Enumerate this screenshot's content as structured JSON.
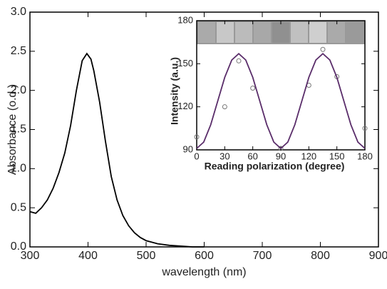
{
  "chart_data": [
    {
      "type": "line",
      "x_label": "wavelength (nm)",
      "y_label": "Absorbance (o.d.)",
      "xlim": [
        300,
        900
      ],
      "ylim": [
        0,
        3
      ],
      "xticks": [
        300,
        400,
        500,
        600,
        700,
        800,
        900
      ],
      "yticks": [
        {
          "value": 0,
          "label": "0.0"
        },
        0.5,
        {
          "value": 1,
          "label": "1.0"
        },
        1.5,
        {
          "value": 2,
          "label": "2.0"
        },
        2.5,
        {
          "value": 3,
          "label": "3.0"
        }
      ],
      "grid": false,
      "series": [
        {
          "color": "#000000",
          "x": [
            300,
            310,
            320,
            330,
            340,
            350,
            360,
            370,
            380,
            390,
            398,
            405,
            410,
            420,
            430,
            440,
            450,
            460,
            470,
            480,
            490,
            500,
            520,
            540,
            560,
            580,
            600
          ],
          "values": [
            0.45,
            0.43,
            0.5,
            0.6,
            0.75,
            0.95,
            1.2,
            1.55,
            2.0,
            2.38,
            2.47,
            2.4,
            2.25,
            1.85,
            1.35,
            0.9,
            0.6,
            0.4,
            0.27,
            0.18,
            0.12,
            0.08,
            0.04,
            0.02,
            0.01,
            0.0,
            0.0
          ]
        }
      ]
    },
    {
      "type": "scatter",
      "x_label": "Reading polarization (degree)",
      "y_label": "Intensity (a.u.)",
      "xlim": [
        0,
        180
      ],
      "ylim": [
        90,
        180
      ],
      "xticks": [
        0,
        30,
        60,
        90,
        120,
        150,
        180
      ],
      "yticks": [
        90,
        120,
        150,
        180
      ],
      "grid": false,
      "series": [
        {
          "type": "scatter",
          "color": "#777777",
          "x": [
            0,
            30,
            45,
            60,
            90,
            120,
            135,
            150,
            180
          ],
          "values": [
            99,
            120,
            152,
            133,
            91,
            135,
            160,
            141,
            105
          ]
        },
        {
          "type": "line",
          "color": "#5a2d6a",
          "x": [
            0,
            7.5,
            15,
            22.5,
            30,
            37.5,
            45,
            52.5,
            60,
            67.5,
            75,
            82.5,
            90,
            97.5,
            105,
            112.5,
            120,
            127.5,
            135,
            142.5,
            150,
            157.5,
            165,
            172.5,
            180
          ],
          "values": [
            91,
            95.4,
            107.5,
            124,
            140.5,
            152.6,
            157,
            152.6,
            140.5,
            124,
            107.5,
            95.4,
            91,
            95.4,
            107.5,
            124,
            140.5,
            152.6,
            157,
            152.6,
            140.5,
            124,
            107.5,
            95.4,
            91
          ]
        }
      ]
    }
  ]
}
